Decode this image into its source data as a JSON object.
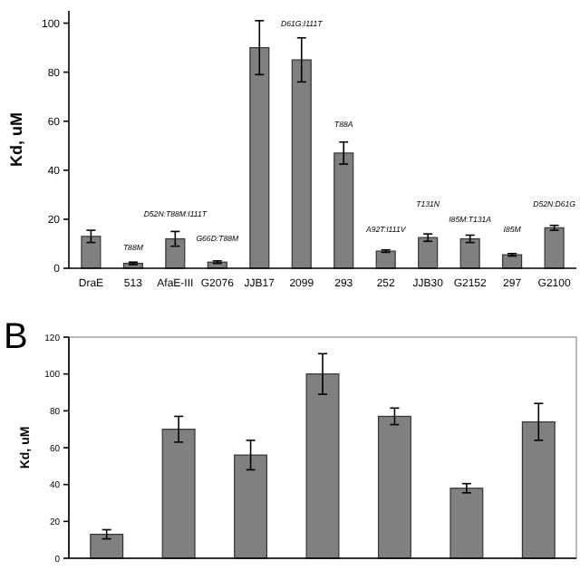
{
  "chart_data": [
    {
      "type": "bar",
      "ylabel": "Kd, uM",
      "categories": [
        "DraE",
        "513",
        "AfaE-III",
        "G2076",
        "JJB17",
        "2099",
        "293",
        "252",
        "JJB30",
        "G2152",
        "297",
        "G2100"
      ],
      "series": [
        {
          "color": "#808080",
          "values": [
            13,
            2,
            12,
            2.5,
            90,
            85,
            47,
            7,
            12.5,
            12,
            5.5,
            16.5
          ],
          "errors": [
            2.5,
            0.5,
            3,
            0.5,
            11,
            9,
            4.5,
            0.5,
            1.5,
            1.5,
            0.5,
            1
          ]
        }
      ],
      "ylim": [
        0,
        105
      ],
      "yticks": [
        0,
        20,
        40,
        60,
        80,
        100
      ],
      "grid": false,
      "annotations": [
        "T88M",
        "D52N:T88M:I111T",
        "G66D:T88M",
        "D61G:I111T",
        "T88A",
        "A92T:I111V",
        "T131N",
        "I85M:T131A",
        "I85M",
        "D52N:D61G"
      ]
    },
    {
      "type": "bar",
      "title": "B",
      "ylabel": "Kd, uM",
      "categories": [
        null,
        null,
        null,
        null,
        null,
        null,
        null
      ],
      "series": [
        {
          "color": "#808080",
          "values": [
            13,
            70,
            56,
            100,
            77,
            38,
            74
          ],
          "errors": [
            2.5,
            7,
            8,
            11,
            4.5,
            2.5,
            10
          ]
        }
      ],
      "ylim": [
        0,
        120
      ],
      "yticks": [
        0,
        20,
        40,
        60,
        80,
        100,
        120
      ],
      "grid": false
    }
  ]
}
